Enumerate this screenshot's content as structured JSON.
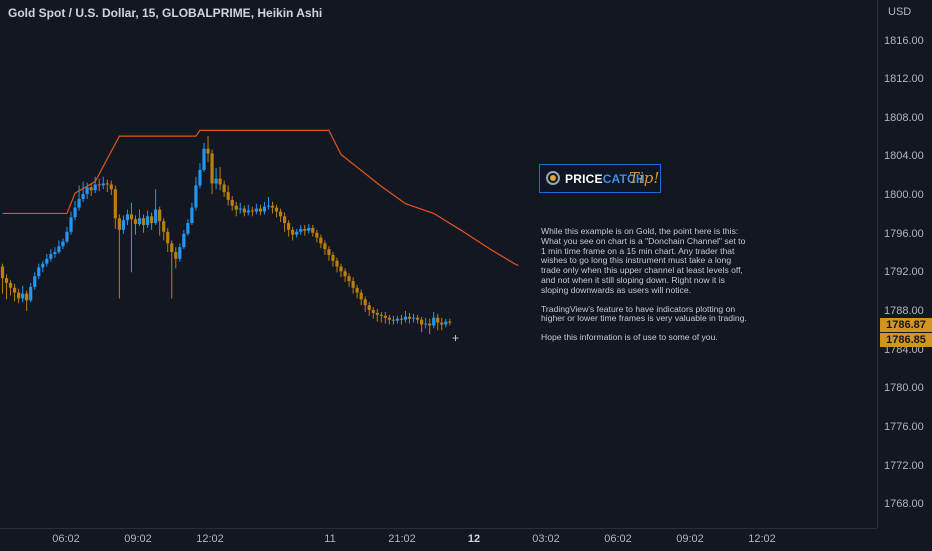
{
  "header": {
    "title": "Gold Spot / U.S. Dollar, 15, GLOBALPRIME, Heikin Ashi"
  },
  "axis": {
    "currency": "USD",
    "y_ticks": [
      "1816.00",
      "1812.00",
      "1808.00",
      "1804.00",
      "1800.00",
      "1796.00",
      "1792.00",
      "1788.00",
      "1784.00",
      "1780.00",
      "1776.00",
      "1772.00",
      "1768.00"
    ],
    "x_ticks": [
      {
        "label": "06:02",
        "bold": false
      },
      {
        "label": "09:02",
        "bold": false
      },
      {
        "label": "12:02",
        "bold": false
      },
      {
        "label": "11",
        "bold": false
      },
      {
        "label": "21:02",
        "bold": false
      },
      {
        "label": "12",
        "bold": true
      },
      {
        "label": "03:02",
        "bold": false
      },
      {
        "label": "06:02",
        "bold": false
      },
      {
        "label": "09:02",
        "bold": false
      },
      {
        "label": "12:02",
        "bold": false
      }
    ]
  },
  "price_tags": [
    {
      "label": "1786.87",
      "color": "#d3951d"
    },
    {
      "label": "1786.85",
      "color": "#d3951d"
    }
  ],
  "logo": {
    "brand_a": "PRICE",
    "brand_b": "CATCH",
    "tip": "Tip!"
  },
  "note": {
    "paragraphs": [
      "While this example is on Gold, the point here is this: What you see on chart is a \"Donchain Channel\" set to 1 min time frame on a 15 min chart.  Any trader that wishes to go long this instrument must take a long trade only when this upper channel at least levels off, and not when it still sloping down. Right now it is sloping downwards as users will notice.",
      "TradingView's feature to have indicators plotting on higher or lower time frames is very valuable in trading.",
      "Hope this information is of use to some of you."
    ]
  },
  "colors": {
    "background": "#131722",
    "bull": "#2196f3",
    "bear": "#b8800e",
    "channel": "#e0561e",
    "grid": "#2a2e39",
    "text": "#b2b5be"
  },
  "chart_data": {
    "type": "candlestick",
    "style": "Heikin Ashi",
    "symbol": "Gold Spot / U.S. Dollar",
    "interval": "15",
    "ylim": [
      1766.0,
      1818.0
    ],
    "y_scale": "linear",
    "grid": false,
    "donchian_upper": {
      "name": "",
      "points": [
        [
          0,
          1798.1
        ],
        [
          16,
          1798.1
        ],
        [
          18,
          1800.2
        ],
        [
          23,
          1801.4
        ],
        [
          29,
          1806.1
        ],
        [
          48,
          1806.1
        ],
        [
          49,
          1806.7
        ],
        [
          81,
          1806.7
        ],
        [
          84,
          1804.2
        ],
        [
          94,
          1800.9
        ],
        [
          100,
          1799.1
        ],
        [
          107,
          1798.1
        ],
        [
          114,
          1796.3
        ],
        [
          121,
          1794.4
        ],
        [
          127,
          1792.9
        ],
        [
          128,
          1792.7
        ]
      ]
    },
    "candles": [
      {
        "o": 1792.6,
        "c": 1791.4,
        "h": 1792.9,
        "l": 1789.8
      },
      {
        "o": 1791.4,
        "c": 1790.9,
        "h": 1791.8,
        "l": 1789.2
      },
      {
        "o": 1790.9,
        "c": 1790.4,
        "h": 1791.2,
        "l": 1789.6
      },
      {
        "o": 1790.4,
        "c": 1789.9,
        "h": 1790.8,
        "l": 1789.0
      },
      {
        "o": 1789.9,
        "c": 1789.3,
        "h": 1790.3,
        "l": 1788.8
      },
      {
        "o": 1789.3,
        "c": 1789.8,
        "h": 1790.6,
        "l": 1788.9
      },
      {
        "o": 1789.8,
        "c": 1789.1,
        "h": 1790.1,
        "l": 1788.0
      },
      {
        "o": 1789.1,
        "c": 1790.5,
        "h": 1790.9,
        "l": 1788.9
      },
      {
        "o": 1790.5,
        "c": 1791.6,
        "h": 1792.0,
        "l": 1790.2
      },
      {
        "o": 1791.6,
        "c": 1792.5,
        "h": 1792.9,
        "l": 1791.3
      },
      {
        "o": 1792.5,
        "c": 1792.9,
        "h": 1793.2,
        "l": 1792.0
      },
      {
        "o": 1792.9,
        "c": 1793.4,
        "h": 1793.9,
        "l": 1792.6
      },
      {
        "o": 1793.4,
        "c": 1793.9,
        "h": 1794.4,
        "l": 1793.1
      },
      {
        "o": 1793.9,
        "c": 1794.1,
        "h": 1794.6,
        "l": 1793.5
      },
      {
        "o": 1794.1,
        "c": 1794.7,
        "h": 1795.3,
        "l": 1793.9
      },
      {
        "o": 1794.7,
        "c": 1795.2,
        "h": 1795.5,
        "l": 1794.4
      },
      {
        "o": 1795.2,
        "c": 1796.2,
        "h": 1796.7,
        "l": 1795.0
      },
      {
        "o": 1796.2,
        "c": 1797.7,
        "h": 1798.3,
        "l": 1795.9
      },
      {
        "o": 1797.7,
        "c": 1798.7,
        "h": 1799.4,
        "l": 1797.4
      },
      {
        "o": 1798.7,
        "c": 1799.6,
        "h": 1801.0,
        "l": 1798.4
      },
      {
        "o": 1799.6,
        "c": 1800.1,
        "h": 1801.4,
        "l": 1799.3
      },
      {
        "o": 1800.1,
        "c": 1800.8,
        "h": 1801.3,
        "l": 1799.6
      },
      {
        "o": 1800.8,
        "c": 1800.5,
        "h": 1801.2,
        "l": 1799.9
      },
      {
        "o": 1800.5,
        "c": 1801.1,
        "h": 1801.9,
        "l": 1800.2
      },
      {
        "o": 1801.1,
        "c": 1801.0,
        "h": 1801.7,
        "l": 1800.4
      },
      {
        "o": 1801.0,
        "c": 1801.2,
        "h": 1801.9,
        "l": 1800.6
      },
      {
        "o": 1801.2,
        "c": 1801.1,
        "h": 1801.6,
        "l": 1800.3
      },
      {
        "o": 1801.1,
        "c": 1800.6,
        "h": 1801.5,
        "l": 1800.0
      },
      {
        "o": 1800.6,
        "c": 1797.6,
        "h": 1801.0,
        "l": 1796.5
      },
      {
        "o": 1797.6,
        "c": 1796.4,
        "h": 1798.0,
        "l": 1789.3
      },
      {
        "o": 1796.4,
        "c": 1797.4,
        "h": 1797.9,
        "l": 1796.0
      },
      {
        "o": 1797.4,
        "c": 1798.0,
        "h": 1798.5,
        "l": 1796.9
      },
      {
        "o": 1798.0,
        "c": 1797.5,
        "h": 1799.2,
        "l": 1792.0
      },
      {
        "o": 1797.5,
        "c": 1797.0,
        "h": 1797.9,
        "l": 1795.9
      },
      {
        "o": 1797.0,
        "c": 1797.6,
        "h": 1798.5,
        "l": 1796.8
      },
      {
        "o": 1797.6,
        "c": 1796.9,
        "h": 1798.0,
        "l": 1796.1
      },
      {
        "o": 1796.9,
        "c": 1797.8,
        "h": 1798.4,
        "l": 1796.6
      },
      {
        "o": 1797.8,
        "c": 1797.1,
        "h": 1798.2,
        "l": 1796.4
      },
      {
        "o": 1797.1,
        "c": 1798.5,
        "h": 1800.6,
        "l": 1796.9
      },
      {
        "o": 1798.5,
        "c": 1797.3,
        "h": 1798.8,
        "l": 1795.8
      },
      {
        "o": 1797.3,
        "c": 1796.2,
        "h": 1797.6,
        "l": 1795.3
      },
      {
        "o": 1796.2,
        "c": 1795.0,
        "h": 1796.6,
        "l": 1794.1
      },
      {
        "o": 1795.0,
        "c": 1794.1,
        "h": 1795.3,
        "l": 1789.3
      },
      {
        "o": 1794.1,
        "c": 1793.4,
        "h": 1794.6,
        "l": 1792.4
      },
      {
        "o": 1793.4,
        "c": 1794.6,
        "h": 1795.0,
        "l": 1793.1
      },
      {
        "o": 1794.6,
        "c": 1796.0,
        "h": 1796.4,
        "l": 1794.4
      },
      {
        "o": 1796.0,
        "c": 1797.1,
        "h": 1797.5,
        "l": 1795.8
      },
      {
        "o": 1797.1,
        "c": 1798.7,
        "h": 1799.2,
        "l": 1796.9
      },
      {
        "o": 1798.7,
        "c": 1801.0,
        "h": 1801.9,
        "l": 1798.4
      },
      {
        "o": 1801.0,
        "c": 1802.6,
        "h": 1803.3,
        "l": 1800.7
      },
      {
        "o": 1802.6,
        "c": 1804.8,
        "h": 1805.4,
        "l": 1802.4
      },
      {
        "o": 1804.8,
        "c": 1804.3,
        "h": 1806.1,
        "l": 1803.4
      },
      {
        "o": 1804.3,
        "c": 1801.2,
        "h": 1804.7,
        "l": 1800.1
      },
      {
        "o": 1801.2,
        "c": 1801.7,
        "h": 1802.8,
        "l": 1800.6
      },
      {
        "o": 1801.7,
        "c": 1801.1,
        "h": 1802.9,
        "l": 1800.5
      },
      {
        "o": 1801.1,
        "c": 1800.3,
        "h": 1801.5,
        "l": 1799.8
      },
      {
        "o": 1800.3,
        "c": 1799.5,
        "h": 1801.0,
        "l": 1798.9
      },
      {
        "o": 1799.5,
        "c": 1798.9,
        "h": 1799.9,
        "l": 1798.4
      },
      {
        "o": 1798.9,
        "c": 1798.5,
        "h": 1799.3,
        "l": 1797.8
      },
      {
        "o": 1798.5,
        "c": 1798.6,
        "h": 1799.2,
        "l": 1798.1
      },
      {
        "o": 1798.6,
        "c": 1798.2,
        "h": 1798.9,
        "l": 1797.8
      },
      {
        "o": 1798.2,
        "c": 1798.4,
        "h": 1799.0,
        "l": 1797.9
      },
      {
        "o": 1798.4,
        "c": 1798.3,
        "h": 1798.8,
        "l": 1797.8
      },
      {
        "o": 1798.3,
        "c": 1798.6,
        "h": 1799.1,
        "l": 1798.0
      },
      {
        "o": 1798.6,
        "c": 1798.3,
        "h": 1799.0,
        "l": 1797.9
      },
      {
        "o": 1798.3,
        "c": 1798.8,
        "h": 1799.3,
        "l": 1798.0
      },
      {
        "o": 1798.8,
        "c": 1798.9,
        "h": 1799.8,
        "l": 1798.5
      },
      {
        "o": 1798.9,
        "c": 1798.7,
        "h": 1799.3,
        "l": 1798.1
      },
      {
        "o": 1798.7,
        "c": 1798.3,
        "h": 1799.0,
        "l": 1797.7
      },
      {
        "o": 1798.3,
        "c": 1797.8,
        "h": 1798.6,
        "l": 1797.2
      },
      {
        "o": 1797.8,
        "c": 1797.1,
        "h": 1798.2,
        "l": 1796.2
      },
      {
        "o": 1797.1,
        "c": 1796.4,
        "h": 1797.4,
        "l": 1795.7
      },
      {
        "o": 1796.4,
        "c": 1795.9,
        "h": 1796.7,
        "l": 1795.3
      },
      {
        "o": 1795.9,
        "c": 1796.2,
        "h": 1796.5,
        "l": 1795.6
      },
      {
        "o": 1796.2,
        "c": 1796.5,
        "h": 1796.9,
        "l": 1795.9
      },
      {
        "o": 1796.5,
        "c": 1796.3,
        "h": 1796.9,
        "l": 1795.8
      },
      {
        "o": 1796.3,
        "c": 1796.6,
        "h": 1797.0,
        "l": 1796.0
      },
      {
        "o": 1796.6,
        "c": 1796.1,
        "h": 1796.9,
        "l": 1795.7
      },
      {
        "o": 1796.1,
        "c": 1795.6,
        "h": 1796.4,
        "l": 1795.1
      },
      {
        "o": 1795.6,
        "c": 1795.0,
        "h": 1795.9,
        "l": 1794.5
      },
      {
        "o": 1795.0,
        "c": 1794.4,
        "h": 1795.3,
        "l": 1793.8
      },
      {
        "o": 1794.4,
        "c": 1793.8,
        "h": 1794.7,
        "l": 1793.2
      },
      {
        "o": 1793.8,
        "c": 1793.2,
        "h": 1794.1,
        "l": 1792.6
      },
      {
        "o": 1793.2,
        "c": 1792.6,
        "h": 1793.5,
        "l": 1792.0
      },
      {
        "o": 1792.6,
        "c": 1792.1,
        "h": 1792.9,
        "l": 1791.5
      },
      {
        "o": 1792.1,
        "c": 1791.6,
        "h": 1792.4,
        "l": 1791.0
      },
      {
        "o": 1791.6,
        "c": 1791.1,
        "h": 1791.9,
        "l": 1790.5
      },
      {
        "o": 1791.1,
        "c": 1790.4,
        "h": 1791.5,
        "l": 1789.8
      },
      {
        "o": 1790.4,
        "c": 1789.9,
        "h": 1790.7,
        "l": 1789.3
      },
      {
        "o": 1789.9,
        "c": 1789.2,
        "h": 1790.2,
        "l": 1788.6
      },
      {
        "o": 1789.2,
        "c": 1788.6,
        "h": 1789.5,
        "l": 1787.9
      },
      {
        "o": 1788.6,
        "c": 1788.1,
        "h": 1788.9,
        "l": 1787.5
      },
      {
        "o": 1788.1,
        "c": 1787.8,
        "h": 1788.4,
        "l": 1787.2
      },
      {
        "o": 1787.8,
        "c": 1787.6,
        "h": 1788.2,
        "l": 1786.9
      },
      {
        "o": 1787.6,
        "c": 1787.5,
        "h": 1787.9,
        "l": 1786.8
      },
      {
        "o": 1787.5,
        "c": 1787.3,
        "h": 1787.9,
        "l": 1786.7
      },
      {
        "o": 1787.3,
        "c": 1787.1,
        "h": 1787.6,
        "l": 1786.6
      },
      {
        "o": 1787.1,
        "c": 1787.0,
        "h": 1787.5,
        "l": 1786.6
      },
      {
        "o": 1787.0,
        "c": 1787.2,
        "h": 1787.5,
        "l": 1786.7
      },
      {
        "o": 1787.2,
        "c": 1787.1,
        "h": 1787.6,
        "l": 1786.6
      },
      {
        "o": 1787.1,
        "c": 1787.4,
        "h": 1788.0,
        "l": 1786.8
      },
      {
        "o": 1787.4,
        "c": 1787.2,
        "h": 1787.8,
        "l": 1786.7
      },
      {
        "o": 1787.2,
        "c": 1787.3,
        "h": 1787.7,
        "l": 1786.8
      },
      {
        "o": 1787.3,
        "c": 1787.1,
        "h": 1787.6,
        "l": 1786.7
      },
      {
        "o": 1787.1,
        "c": 1786.6,
        "h": 1787.4,
        "l": 1785.8
      },
      {
        "o": 1786.6,
        "c": 1786.7,
        "h": 1787.3,
        "l": 1786.2
      },
      {
        "o": 1786.7,
        "c": 1786.5,
        "h": 1787.2,
        "l": 1785.6
      },
      {
        "o": 1786.5,
        "c": 1787.3,
        "h": 1787.9,
        "l": 1786.2
      },
      {
        "o": 1787.3,
        "c": 1786.8,
        "h": 1787.7,
        "l": 1786.0
      },
      {
        "o": 1786.8,
        "c": 1786.6,
        "h": 1787.3,
        "l": 1786.0
      },
      {
        "o": 1786.6,
        "c": 1786.9,
        "h": 1787.2,
        "l": 1786.3
      },
      {
        "o": 1786.9,
        "c": 1786.87,
        "h": 1787.2,
        "l": 1786.5
      }
    ]
  }
}
